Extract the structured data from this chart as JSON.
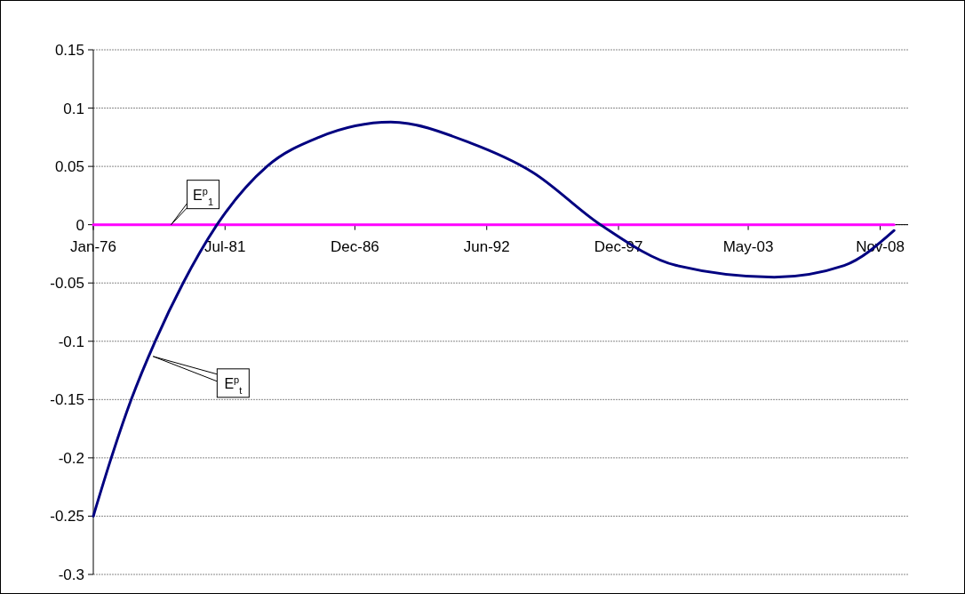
{
  "chart_data": {
    "type": "line",
    "x": [
      "1976-01",
      "1976-10",
      "1977-08",
      "1978-08",
      "1979-10",
      "1981-03",
      "1983-04",
      "1985-06",
      "1988-06",
      "1991-10",
      "1994-05",
      "1997-03",
      "2000-05",
      "2004-06",
      "2007-05",
      "2009-06"
    ],
    "series": [
      {
        "color": "#000080",
        "values": [
          -0.25,
          -0.2,
          -0.15,
          -0.1,
          -0.05,
          0,
          0.05,
          0.075,
          0.088,
          0.07,
          0.045,
          0,
          -0.035,
          -0.045,
          -0.035,
          -0.005
        ]
      },
      {
        "color": "#ff00ff",
        "x": [
          "1976-01",
          "2009-06"
        ],
        "values": [
          0,
          0
        ]
      }
    ],
    "xlim": [
      "1976-01",
      "2010-01"
    ],
    "xticks": [
      {
        "value": "1976-01",
        "label": "Jan-76"
      },
      {
        "value": "1981-07",
        "label": "Jul-81"
      },
      {
        "value": "1986-12",
        "label": "Dec-86"
      },
      {
        "value": "1992-06",
        "label": "Jun-92"
      },
      {
        "value": "1997-12",
        "label": "Dec-97"
      },
      {
        "value": "2003-05",
        "label": "May-03"
      },
      {
        "value": "2008-11",
        "label": "Nov-08"
      }
    ],
    "ylim": [
      -0.3,
      0.15
    ],
    "yticks": [
      -0.3,
      -0.25,
      -0.2,
      -0.15,
      -0.1,
      -0.05,
      0,
      0.05,
      0.1,
      0.15
    ],
    "grid": "y",
    "annotations": [
      {
        "text": "E$^{p}$$_{1}$",
        "x": "1979-04",
        "y": 0
      },
      {
        "text": "E$^{p}$$_{t}$",
        "x": "1978-07",
        "y": -0.113
      }
    ]
  }
}
